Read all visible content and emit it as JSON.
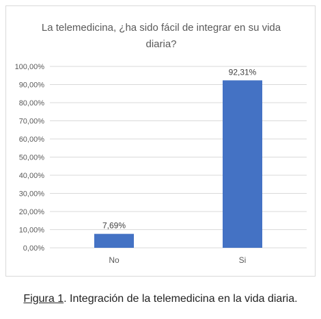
{
  "chart_data": {
    "type": "bar",
    "title_lines": [
      "La telemedicina, ¿ha sido fácil de integrar en su vida",
      "diaria?"
    ],
    "categories": [
      "No",
      "Si"
    ],
    "values": [
      7.69,
      92.31
    ],
    "data_labels": [
      "7,69%",
      "92,31%"
    ],
    "ylim": [
      0,
      100
    ],
    "yticks": [
      0,
      10,
      20,
      30,
      40,
      50,
      60,
      70,
      80,
      90,
      100
    ],
    "ytick_labels": [
      "0,00%",
      "10,00%",
      "20,00%",
      "30,00%",
      "40,00%",
      "50,00%",
      "60,00%",
      "70,00%",
      "80,00%",
      "90,00%",
      "100,00%"
    ],
    "grid": true,
    "bar_color": "#4472c4",
    "grid_color": "#d9d9d9"
  },
  "caption": {
    "link": "Figura 1",
    "text": ". Integración de la telemedicina en la vida diaria."
  }
}
